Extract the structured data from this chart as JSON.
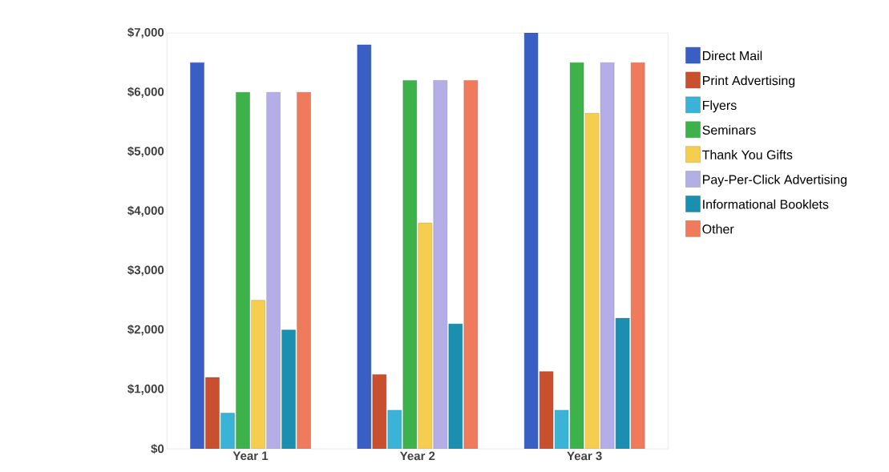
{
  "chart_data": {
    "type": "bar",
    "categories": [
      "Year 1",
      "Year 2",
      "Year 3"
    ],
    "series": [
      {
        "name": "Direct Mail",
        "color": "#3a5fc4",
        "values": [
          6500,
          6800,
          7000
        ]
      },
      {
        "name": "Print Advertising",
        "color": "#c8502e",
        "values": [
          1200,
          1250,
          1300
        ]
      },
      {
        "name": "Flyers",
        "color": "#3bb3d6",
        "values": [
          600,
          650,
          650
        ]
      },
      {
        "name": "Seminars",
        "color": "#3db24a",
        "values": [
          6000,
          6200,
          6500
        ]
      },
      {
        "name": "Thank You Gifts",
        "color": "#f5cd4f",
        "values": [
          2500,
          3800,
          5650
        ]
      },
      {
        "name": "Pay-Per-Click Advertising",
        "color": "#b4aee6",
        "values": [
          6000,
          6200,
          6500
        ]
      },
      {
        "name": "Informational Booklets",
        "color": "#1b8fb0",
        "values": [
          2000,
          2100,
          2200
        ]
      },
      {
        "name": "Other",
        "color": "#f07a5c",
        "values": [
          6000,
          6200,
          6500
        ]
      }
    ],
    "ylim": [
      0,
      7000
    ],
    "yticks": [
      {
        "value": 0,
        "label": "$0"
      },
      {
        "value": 1000,
        "label": "$1,000"
      },
      {
        "value": 2000,
        "label": "$2,000"
      },
      {
        "value": 3000,
        "label": "$3,000"
      },
      {
        "value": 4000,
        "label": "$4,000"
      },
      {
        "value": 5000,
        "label": "$5,000"
      },
      {
        "value": 6000,
        "label": "$6,000"
      },
      {
        "value": 7000,
        "label": "$7,000"
      }
    ],
    "legend": "right"
  }
}
